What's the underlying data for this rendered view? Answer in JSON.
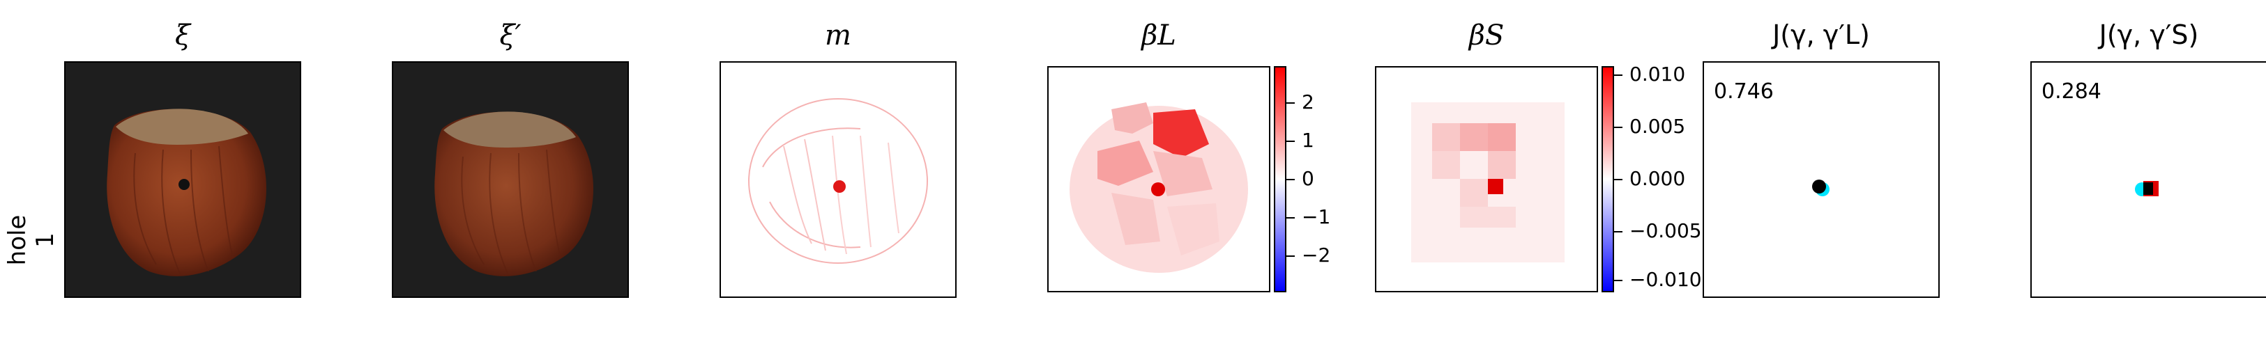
{
  "row_label": "hole\n1",
  "titles": {
    "xi": "ξ",
    "xi_prime": "ξ′",
    "m": "m",
    "beta_L": "βL",
    "beta_S": "βS",
    "J_L": "J(γ, γ′L)",
    "J_S": "J(γ, γ′S)"
  },
  "colorbar_L": {
    "ticks": [
      "2",
      "1",
      "0",
      "−1",
      "−2"
    ],
    "colors": [
      "#ff0000",
      "#ffffff",
      "#0000ff"
    ]
  },
  "colorbar_S": {
    "ticks": [
      "0.010",
      "0.005",
      "0.000",
      "−0.005",
      "−0.010"
    ],
    "colors": [
      "#ff0000",
      "#ffffff",
      "#0000ff"
    ]
  },
  "scores": {
    "J_L": "0.746",
    "J_S": "0.284"
  },
  "colors": {
    "hazelnut_dark": "#5a1f0f",
    "hazelnut_mid": "#8b3a1e",
    "background_dark": "#1e1e1e",
    "cyan_mask": "#00e5ff"
  }
}
